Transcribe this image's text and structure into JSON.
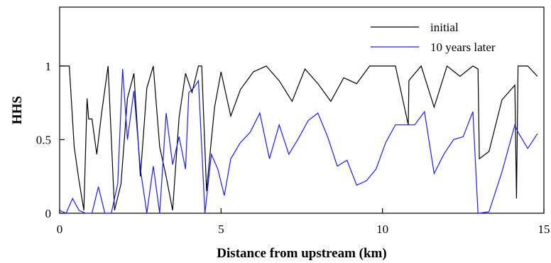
{
  "chart_data": {
    "type": "line",
    "title": "",
    "xlabel": "Distance from upstream (km)",
    "ylabel": "HHS",
    "xlim": [
      0,
      15
    ],
    "ylim": [
      0,
      1.4
    ],
    "x_ticks": [
      "0",
      "5",
      "10",
      "15"
    ],
    "y_ticks": [
      "0",
      "0.5",
      "1"
    ],
    "grid": false,
    "legend_position": "top-right",
    "series": [
      {
        "name": "initial",
        "color": "#000000",
        "x": [
          0.0,
          0.3,
          0.45,
          0.6,
          0.75,
          0.85,
          0.9,
          1.0,
          1.15,
          1.3,
          1.5,
          1.7,
          1.9,
          2.1,
          2.3,
          2.5,
          2.7,
          2.9,
          3.1,
          3.3,
          3.5,
          3.7,
          3.9,
          4.1,
          4.3,
          4.4,
          4.55,
          4.7,
          4.8,
          5.0,
          5.3,
          5.6,
          6.0,
          6.4,
          6.8,
          7.2,
          7.6,
          8.0,
          8.4,
          8.8,
          9.2,
          9.6,
          10.0,
          10.4,
          10.8,
          10.82,
          10.85,
          11.2,
          11.6,
          12.0,
          12.4,
          12.8,
          12.96,
          13.0,
          13.3,
          13.7,
          14.1,
          14.15,
          14.2,
          14.5,
          14.8
        ],
        "values": [
          1.0,
          1.0,
          0.45,
          0.22,
          0.02,
          0.78,
          0.64,
          0.64,
          0.4,
          0.68,
          1.0,
          0.02,
          0.2,
          0.78,
          0.95,
          0.25,
          0.85,
          1.0,
          0.45,
          0.25,
          0.02,
          0.65,
          0.95,
          0.82,
          1.0,
          1.0,
          0.15,
          0.5,
          0.72,
          0.96,
          0.66,
          0.84,
          0.96,
          1.0,
          0.9,
          0.76,
          0.98,
          0.88,
          0.76,
          0.92,
          0.88,
          1.0,
          1.0,
          1.0,
          0.6,
          0.9,
          0.91,
          1.0,
          0.72,
          1.0,
          0.93,
          1.0,
          0.98,
          0.37,
          0.42,
          0.77,
          0.87,
          0.1,
          1.0,
          1.0,
          0.93
        ]
      },
      {
        "name": "10 years later",
        "color": "#1a1aff",
        "x": [
          0.0,
          0.2,
          0.4,
          0.6,
          0.8,
          1.0,
          1.2,
          1.4,
          1.6,
          1.8,
          1.95,
          2.1,
          2.3,
          2.5,
          2.7,
          2.9,
          3.1,
          3.3,
          3.5,
          3.7,
          3.9,
          4.0,
          4.15,
          4.3,
          4.5,
          4.7,
          4.9,
          5.1,
          5.3,
          5.6,
          5.9,
          6.2,
          6.5,
          6.8,
          7.1,
          7.4,
          7.7,
          8.0,
          8.3,
          8.6,
          8.9,
          9.2,
          9.5,
          9.8,
          10.1,
          10.4,
          10.7,
          10.85,
          11.0,
          11.3,
          11.6,
          11.9,
          12.2,
          12.5,
          12.8,
          12.96,
          13.0,
          13.3,
          13.7,
          14.1,
          14.2,
          14.5,
          14.8
        ],
        "values": [
          0.02,
          0.0,
          0.1,
          0.02,
          0.0,
          0.0,
          0.18,
          0.0,
          0.0,
          0.2,
          0.98,
          0.5,
          0.83,
          0.3,
          0.0,
          0.32,
          0.0,
          0.68,
          0.33,
          0.52,
          0.3,
          0.82,
          0.85,
          0.9,
          0.0,
          0.4,
          0.3,
          0.12,
          0.37,
          0.48,
          0.55,
          0.68,
          0.37,
          0.6,
          0.4,
          0.51,
          0.63,
          0.68,
          0.52,
          0.32,
          0.36,
          0.19,
          0.22,
          0.3,
          0.48,
          0.6,
          0.6,
          0.6,
          0.6,
          0.69,
          0.27,
          0.4,
          0.5,
          0.52,
          0.69,
          0.0,
          0.0,
          0.01,
          0.28,
          0.6,
          0.55,
          0.44,
          0.54
        ]
      }
    ]
  }
}
